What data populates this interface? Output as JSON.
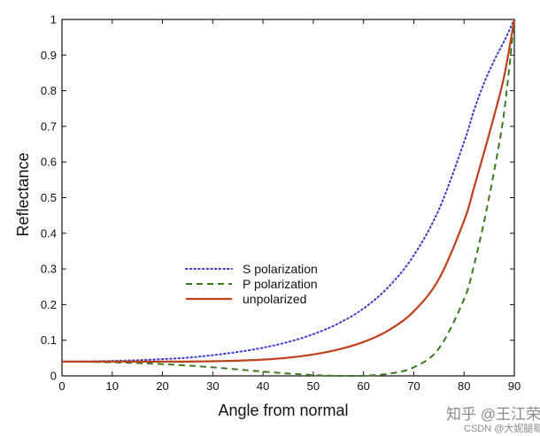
{
  "chart_data": {
    "type": "line",
    "title": "",
    "xlabel": "Angle from normal",
    "ylabel": "Reflectance",
    "xlim": [
      0,
      90
    ],
    "ylim": [
      0,
      1
    ],
    "xticks": [
      0,
      10,
      20,
      30,
      40,
      50,
      60,
      70,
      80,
      90
    ],
    "yticks": [
      0,
      0.1,
      0.2,
      0.3,
      0.4,
      0.5,
      0.6,
      0.7,
      0.8,
      0.9,
      1
    ],
    "ytick_labels": [
      "0",
      "0.1",
      "0.2",
      "0.3",
      "0.4",
      "0.5",
      "0.6",
      "0.7",
      "0.8",
      "0.9",
      "1"
    ],
    "x": [
      0,
      5,
      10,
      15,
      20,
      25,
      30,
      35,
      40,
      45,
      50,
      55,
      60,
      65,
      70,
      75,
      80,
      82,
      84,
      86,
      88,
      90
    ],
    "series": [
      {
        "name": "S polarization",
        "style": "dotted",
        "color": "#3c3cc8",
        "values": [
          0.04,
          0.0405,
          0.042,
          0.044,
          0.047,
          0.051,
          0.058,
          0.067,
          0.079,
          0.095,
          0.117,
          0.147,
          0.189,
          0.25,
          0.338,
          0.467,
          0.656,
          0.746,
          0.822,
          0.885,
          0.94,
          1.0
        ]
      },
      {
        "name": "P polarization",
        "style": "dashed",
        "color": "#3a7a1e",
        "values": [
          0.04,
          0.0395,
          0.038,
          0.036,
          0.033,
          0.029,
          0.024,
          0.018,
          0.012,
          0.0065,
          0.0022,
          0.0002,
          0.0005,
          0.006,
          0.024,
          0.077,
          0.215,
          0.312,
          0.434,
          0.576,
          0.743,
          1.0
        ]
      },
      {
        "name": "unpolarized",
        "style": "solid",
        "color": "#c0401c",
        "values": [
          0.04,
          0.04,
          0.04,
          0.04,
          0.04,
          0.04,
          0.041,
          0.0425,
          0.0455,
          0.051,
          0.06,
          0.074,
          0.095,
          0.128,
          0.181,
          0.272,
          0.435,
          0.529,
          0.628,
          0.731,
          0.842,
          1.0
        ]
      }
    ],
    "legend_position": "center-left"
  },
  "watermark": {
    "line1": "知乎 @王江荣",
    "line2": "CSDN @大妮腿耶"
  }
}
